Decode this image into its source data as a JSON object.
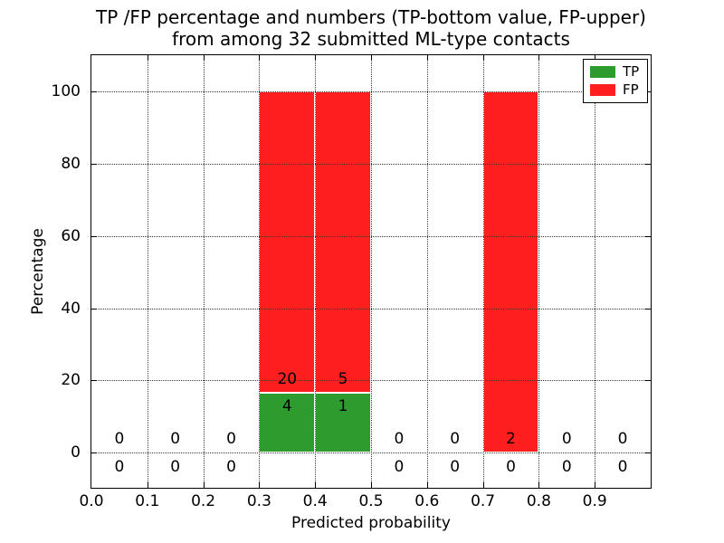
{
  "chart_data": {
    "type": "bar",
    "subtype": "stacked_percentage_histogram",
    "title_line1": "TP /FP percentage and numbers (TP-bottom value, FP-upper)",
    "title_line2": "from among 32 submitted ML-type contacts",
    "xlabel": "Predicted probability",
    "ylabel": "Percentage",
    "total_submitted_contacts": 32,
    "xlim": [
      0.0,
      1.0
    ],
    "ylim": [
      -9.7,
      110.0
    ],
    "grid": "dotted, drawn above bars",
    "xticks": [
      {
        "value": 0.0,
        "label": "0.0"
      },
      {
        "value": 0.1,
        "label": "0.1"
      },
      {
        "value": 0.2,
        "label": "0.2"
      },
      {
        "value": 0.3,
        "label": "0.3"
      },
      {
        "value": 0.4,
        "label": "0.4"
      },
      {
        "value": 0.5,
        "label": "0.5"
      },
      {
        "value": 0.6,
        "label": "0.6"
      },
      {
        "value": 0.7,
        "label": "0.7"
      },
      {
        "value": 0.8,
        "label": "0.8"
      },
      {
        "value": 0.9,
        "label": "0.9"
      }
    ],
    "yticks": [
      {
        "value": 0,
        "label": "0"
      },
      {
        "value": 20,
        "label": "20"
      },
      {
        "value": 40,
        "label": "40"
      },
      {
        "value": 60,
        "label": "60"
      },
      {
        "value": 80,
        "label": "80"
      },
      {
        "value": 100,
        "label": "100"
      }
    ],
    "legend": {
      "position": "upper-right",
      "entries": [
        {
          "label": "TP",
          "color": "#2e9b2e"
        },
        {
          "label": "FP",
          "color": "#ff1f1f"
        }
      ]
    },
    "bins": [
      {
        "x0": 0.0,
        "x1": 0.1,
        "tp_count": 0,
        "fp_count": 0,
        "tp_pct": 0,
        "fp_pct": 0
      },
      {
        "x0": 0.1,
        "x1": 0.2,
        "tp_count": 0,
        "fp_count": 0,
        "tp_pct": 0,
        "fp_pct": 0
      },
      {
        "x0": 0.2,
        "x1": 0.3,
        "tp_count": 0,
        "fp_count": 0,
        "tp_pct": 0,
        "fp_pct": 0
      },
      {
        "x0": 0.3,
        "x1": 0.4,
        "tp_count": 4,
        "fp_count": 20,
        "tp_pct": 16.67,
        "fp_pct": 83.33
      },
      {
        "x0": 0.4,
        "x1": 0.5,
        "tp_count": 1,
        "fp_count": 5,
        "tp_pct": 16.67,
        "fp_pct": 83.33
      },
      {
        "x0": 0.5,
        "x1": 0.6,
        "tp_count": 0,
        "fp_count": 0,
        "tp_pct": 0,
        "fp_pct": 0
      },
      {
        "x0": 0.6,
        "x1": 0.7,
        "tp_count": 0,
        "fp_count": 0,
        "tp_pct": 0,
        "fp_pct": 0
      },
      {
        "x0": 0.7,
        "x1": 0.8,
        "tp_count": 0,
        "fp_count": 2,
        "tp_pct": 0,
        "fp_pct": 100
      },
      {
        "x0": 0.8,
        "x1": 0.9,
        "tp_count": 0,
        "fp_count": 0,
        "tp_pct": 0,
        "fp_pct": 0
      },
      {
        "x0": 0.9,
        "x1": 1.0,
        "tp_count": 0,
        "fp_count": 0,
        "tp_pct": 0,
        "fp_pct": 0
      }
    ],
    "colors": {
      "tp": "#2e9b2e",
      "fp": "#ff1f1f",
      "grid": "#3a3a3a",
      "axis": "#000000",
      "background": "#ffffff"
    }
  }
}
